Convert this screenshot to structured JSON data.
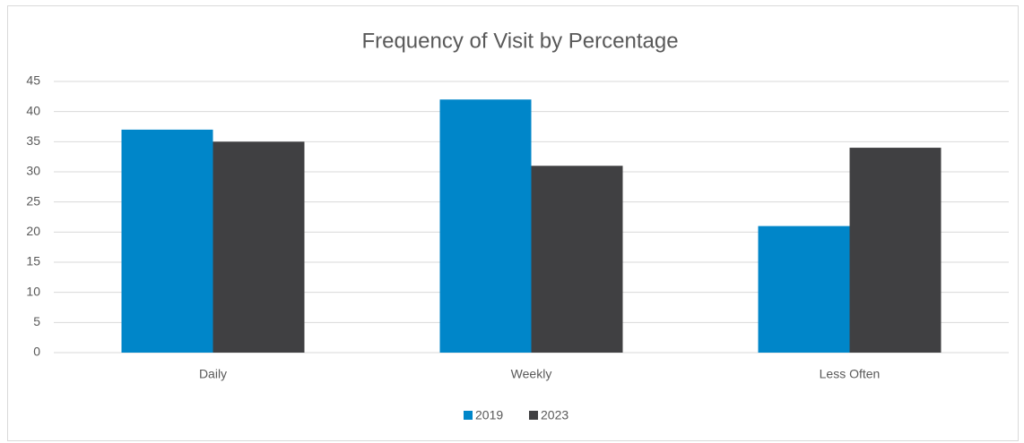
{
  "chart_data": {
    "type": "bar",
    "title": "Frequency of Visit by Percentage",
    "categories": [
      "Daily",
      "Weekly",
      "Less Often"
    ],
    "series": [
      {
        "name": "2019",
        "color": "#0086c9",
        "values": [
          37,
          42,
          21
        ]
      },
      {
        "name": "2023",
        "color": "#404042",
        "values": [
          35,
          31,
          34
        ]
      }
    ],
    "ylim": [
      0,
      45
    ],
    "yticks": [
      0,
      5,
      10,
      15,
      20,
      25,
      30,
      35,
      40,
      45
    ],
    "grid": true,
    "legend": "bottom"
  }
}
